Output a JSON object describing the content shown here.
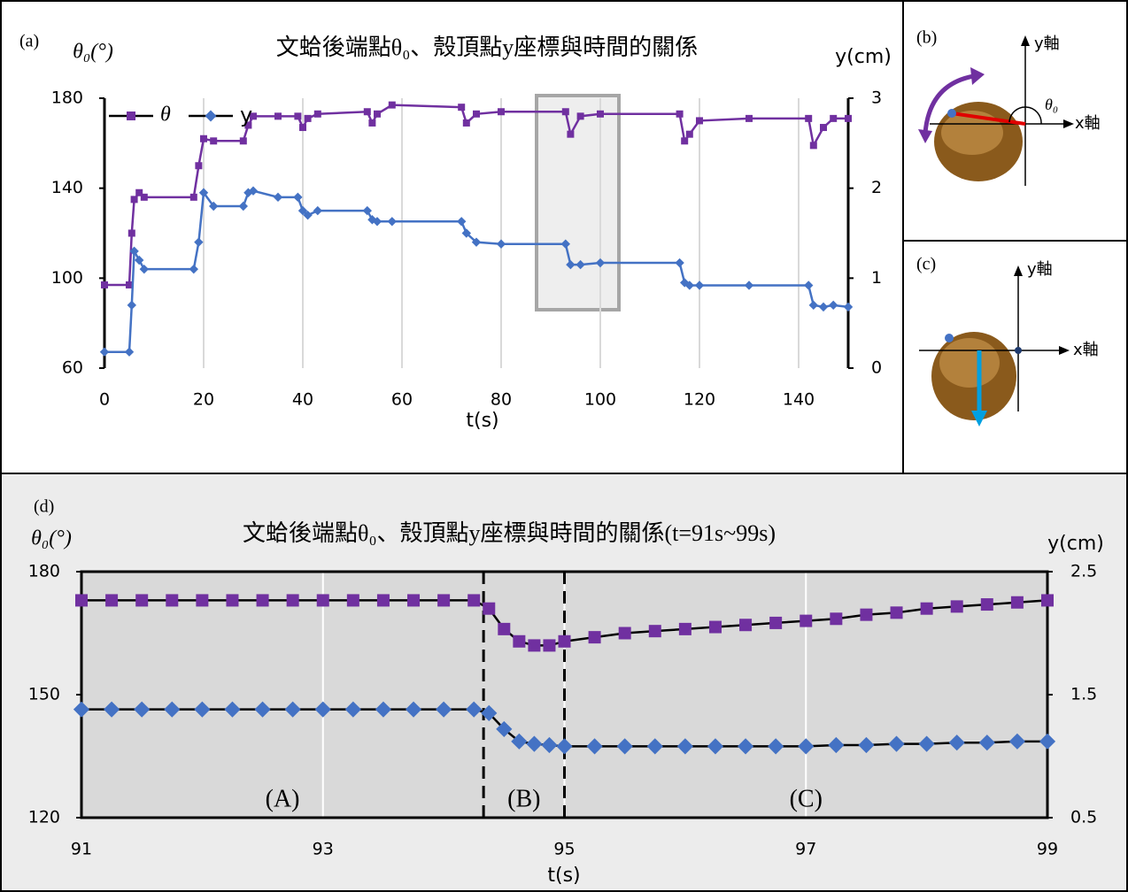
{
  "chart_data": [
    {
      "type": "line",
      "panel_label": "(a)",
      "title": "文蛤後端點θ₀、殼頂點y座標與時間的關係",
      "y_label": "θ₀(°)",
      "y2_label": "y(cm)",
      "x_label": "t(s)",
      "x": [
        0,
        5,
        5.5,
        6,
        7,
        8,
        18,
        19,
        20,
        22,
        28,
        29,
        30,
        35,
        39,
        40,
        41,
        43,
        53,
        54,
        55,
        58,
        72,
        73,
        75,
        80,
        93,
        94,
        96,
        100,
        116,
        117,
        118,
        120,
        130,
        142,
        143,
        145,
        147,
        150
      ],
      "series": [
        {
          "name": "θ",
          "color": "#7030a0",
          "marker": "square",
          "axis": "y",
          "values": [
            97,
            97,
            120,
            135,
            138,
            136,
            136,
            150,
            162,
            161,
            161,
            168,
            172,
            172,
            172,
            167,
            171,
            173,
            174,
            169,
            173,
            177,
            176,
            169,
            173,
            174,
            174,
            164,
            172,
            173,
            173,
            161,
            164,
            170,
            171,
            171,
            159,
            167,
            171,
            171
          ]
        },
        {
          "name": "y",
          "color": "#4472c4",
          "marker": "diamond",
          "axis": "y2",
          "values": [
            0.18,
            0.18,
            0.7,
            1.3,
            1.2,
            1.1,
            1.1,
            1.4,
            1.95,
            1.8,
            1.8,
            1.95,
            1.97,
            1.9,
            1.9,
            1.75,
            1.7,
            1.75,
            1.75,
            1.65,
            1.63,
            1.63,
            1.63,
            1.5,
            1.4,
            1.38,
            1.38,
            1.15,
            1.15,
            1.17,
            1.17,
            0.95,
            0.92,
            0.92,
            0.92,
            0.92,
            0.7,
            0.68,
            0.7,
            0.68
          ]
        }
      ],
      "xlim": [
        0,
        150
      ],
      "xticks": [
        0,
        20,
        40,
        60,
        80,
        100,
        120,
        140
      ],
      "ylim": [
        60,
        180
      ],
      "yticks": [
        60,
        100,
        140,
        180
      ],
      "y2lim": [
        0,
        3
      ],
      "y2ticks": [
        0,
        1,
        2,
        3
      ],
      "grid": true,
      "legend": "top-left"
    },
    {
      "type": "line",
      "panel_label": "(d)",
      "title": "文蛤後端點θ₀、殼頂點y座標與時間的關係(t=91s~99s)",
      "y_label": "θ₀(°)",
      "y2_label": "y(cm)",
      "x_label": "t(s)",
      "x": [
        91,
        91.25,
        91.5,
        91.75,
        92,
        92.25,
        92.5,
        92.75,
        93,
        93.25,
        93.5,
        93.75,
        94,
        94.25,
        94.375,
        94.5,
        94.625,
        94.75,
        94.875,
        95,
        95.25,
        95.5,
        95.75,
        96,
        96.25,
        96.5,
        96.75,
        97,
        97.25,
        97.5,
        97.75,
        98,
        98.25,
        98.5,
        98.75,
        99
      ],
      "series": [
        {
          "color": "#7030a0",
          "marker": "square",
          "axis": "y",
          "values": [
            173,
            173,
            173,
            173,
            173,
            173,
            173,
            173,
            173,
            173,
            173,
            173,
            173,
            173,
            171,
            166,
            163,
            162,
            162,
            163,
            164,
            165,
            165.5,
            166,
            166.5,
            167,
            167.5,
            168,
            168.5,
            169.5,
            170,
            171,
            171.5,
            172,
            172.5,
            173
          ]
        },
        {
          "color": "#4472c4",
          "marker": "diamond",
          "axis": "y2",
          "values": [
            1.38,
            1.38,
            1.38,
            1.38,
            1.38,
            1.38,
            1.38,
            1.38,
            1.38,
            1.38,
            1.38,
            1.38,
            1.38,
            1.38,
            1.35,
            1.22,
            1.12,
            1.1,
            1.09,
            1.08,
            1.08,
            1.08,
            1.08,
            1.08,
            1.08,
            1.08,
            1.08,
            1.08,
            1.09,
            1.09,
            1.1,
            1.1,
            1.11,
            1.11,
            1.12,
            1.12
          ]
        }
      ],
      "xlim": [
        91,
        99
      ],
      "xticks": [
        91,
        93,
        95,
        97,
        99
      ],
      "ylim": [
        120,
        180
      ],
      "yticks": [
        120,
        150,
        180
      ],
      "y2lim": [
        0.5,
        2.5
      ],
      "y2ticks": [
        0.5,
        1.5,
        2.5
      ],
      "grid": true,
      "vlines": [
        94.33,
        95
      ],
      "annotations": [
        "(A)",
        "(B)",
        "(C)"
      ]
    }
  ],
  "panels": {
    "b": {
      "label": "(b)",
      "y_axis": "y軸",
      "x_axis": "x軸",
      "angle": "θ₀"
    },
    "c": {
      "label": "(c)",
      "y_axis": "y軸",
      "x_axis": "x軸"
    }
  }
}
